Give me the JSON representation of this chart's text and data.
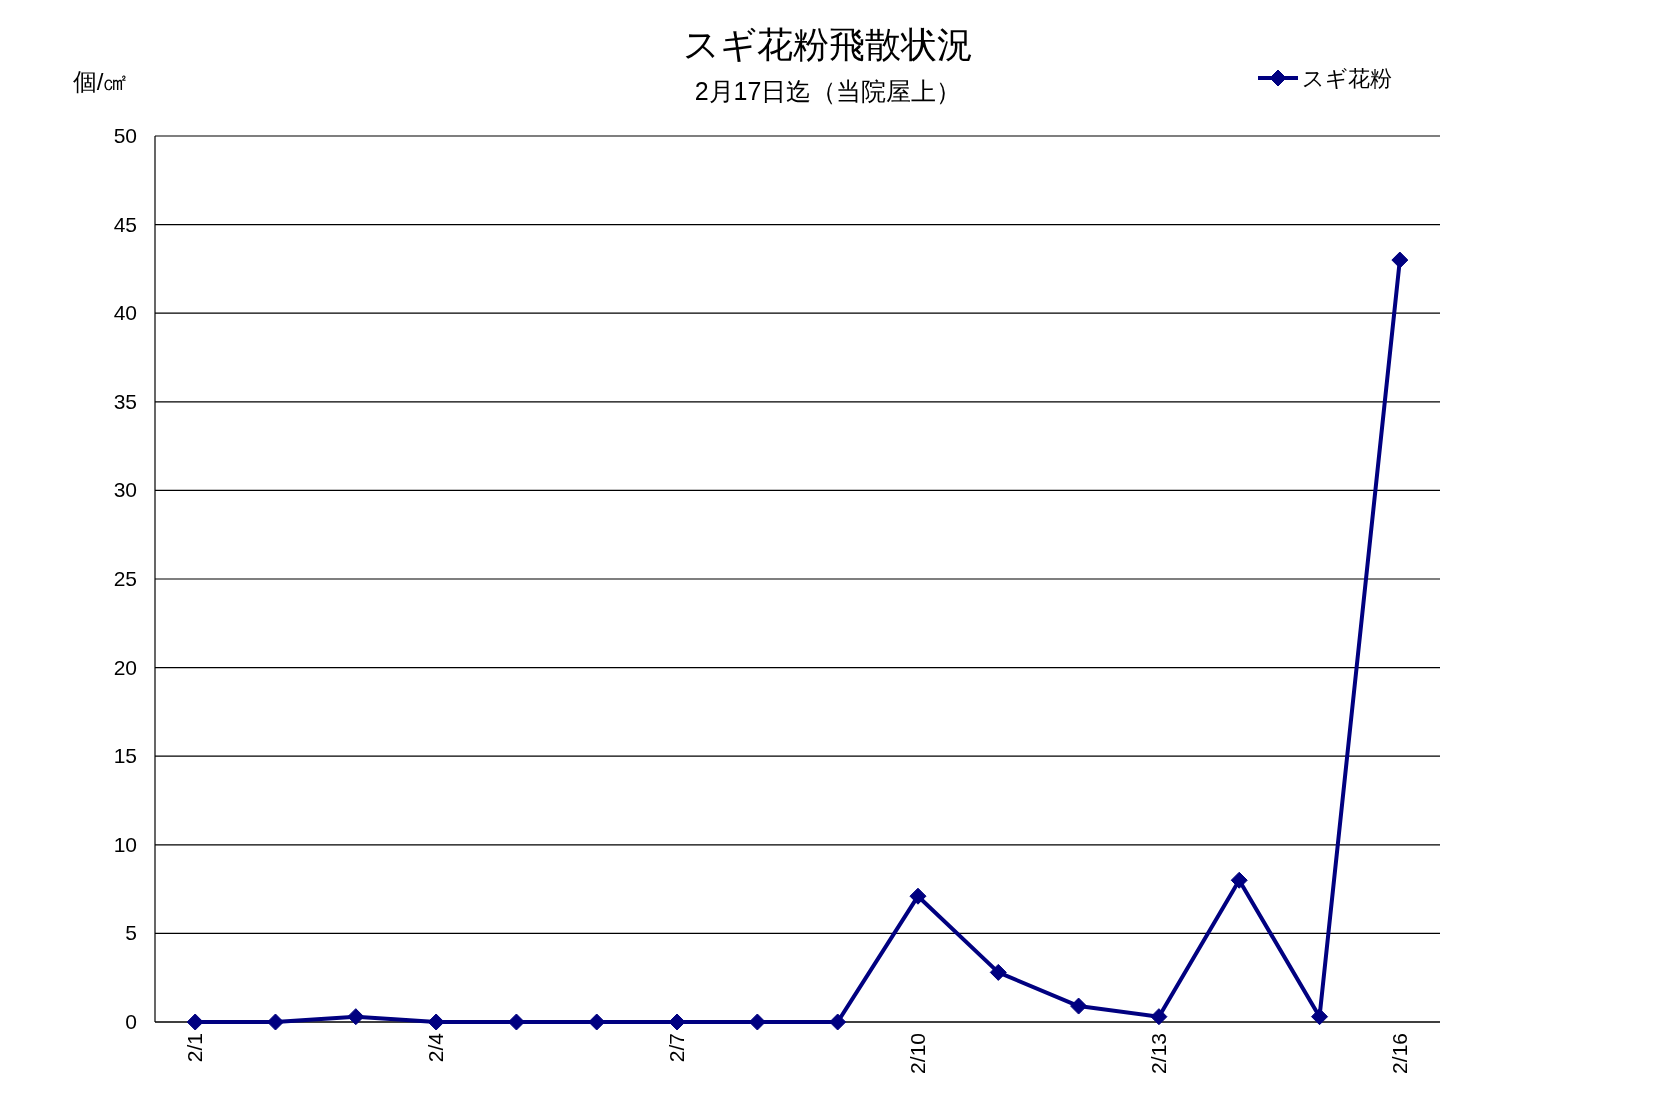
{
  "chart_data": {
    "type": "line",
    "title": "スギ花粉飛散状況",
    "subtitle": "2月17日迄（当院屋上）",
    "ylabel": "個/㎠",
    "categories": [
      "2/1",
      null,
      null,
      "2/4",
      null,
      null,
      "2/7",
      null,
      null,
      "2/10",
      null,
      null,
      "2/13",
      null,
      null,
      "2/16"
    ],
    "series": [
      {
        "name": "スギ花粉",
        "color": "#000080",
        "values": [
          0,
          0,
          0.3,
          0,
          0,
          0,
          0,
          0,
          0,
          7.1,
          2.8,
          0.9,
          0.3,
          8,
          0.3,
          43
        ]
      }
    ],
    "ylim": [
      0,
      50
    ],
    "yticks": [
      0,
      5,
      10,
      15,
      20,
      25,
      30,
      35,
      40,
      45,
      50
    ],
    "grid": "y",
    "legend": "top right",
    "marker": "diamond",
    "line_style": "solid"
  }
}
